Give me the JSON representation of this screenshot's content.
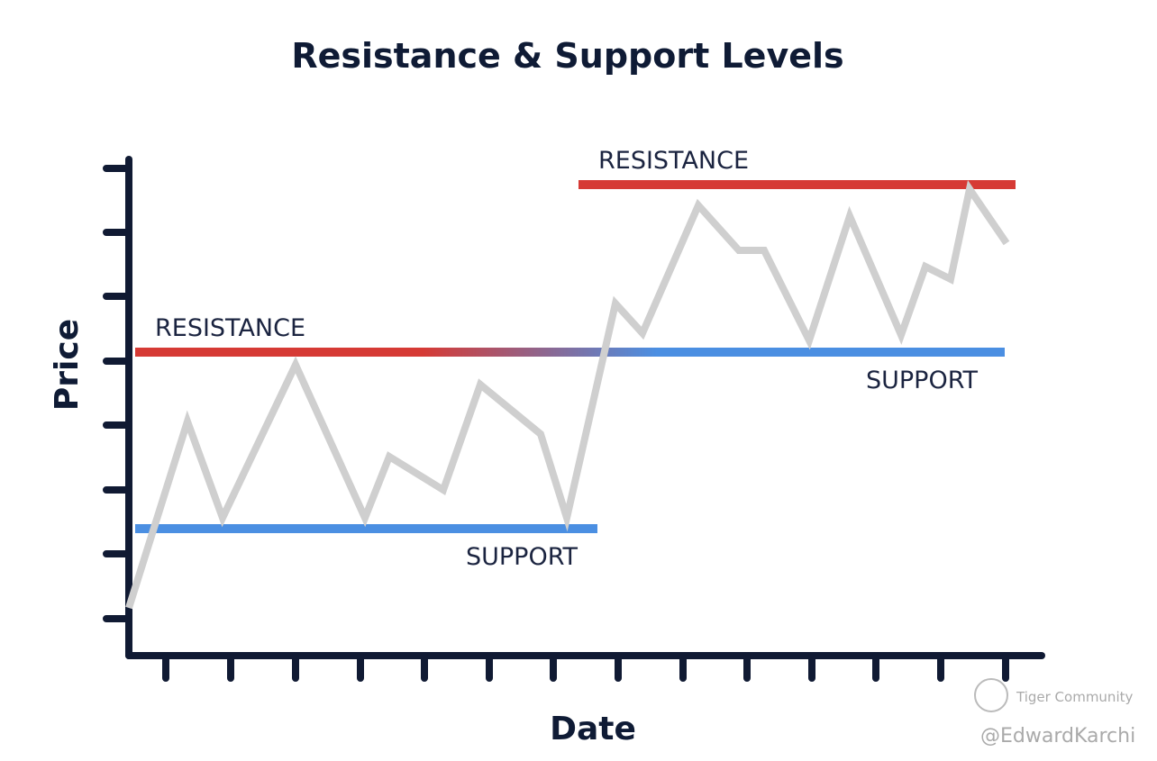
{
  "title": "Resistance & Support Levels",
  "axes": {
    "y_label": "Price",
    "x_label": "Date"
  },
  "annotations": {
    "resistance_left": "RESISTANCE",
    "support_left": "SUPPORT",
    "resistance_right": "RESISTANCE",
    "support_right": "SUPPORT"
  },
  "watermark": {
    "brand": "Tiger Community",
    "author": "@EdwardKarchi"
  }
}
